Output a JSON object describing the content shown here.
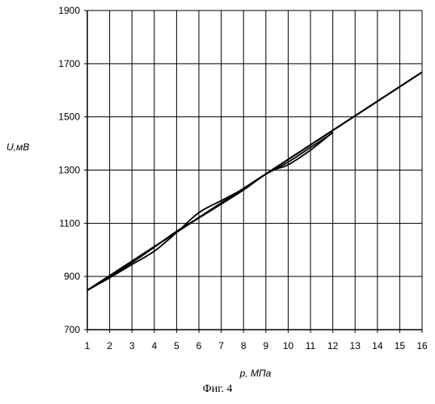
{
  "chart_data": {
    "type": "line",
    "xlabel": "p, МПа",
    "ylabel": "U,мВ",
    "caption": "Фиг. 4",
    "xlim": [
      1,
      16
    ],
    "ylim": [
      700,
      1900
    ],
    "x_ticks": [
      1,
      2,
      3,
      4,
      5,
      6,
      7,
      8,
      9,
      10,
      11,
      12,
      13,
      14,
      15,
      16
    ],
    "y_ticks": [
      700,
      900,
      1100,
      1300,
      1500,
      1700,
      1900
    ],
    "grid": true,
    "series": [
      {
        "values": [
          {
            "x": 1,
            "y": 848
          },
          {
            "x": 16,
            "y": 1668
          }
        ]
      },
      {
        "values": [
          {
            "x": 1,
            "y": 848
          },
          {
            "x": 2,
            "y": 895
          },
          {
            "x": 3,
            "y": 945
          },
          {
            "x": 4,
            "y": 995
          },
          {
            "x": 5,
            "y": 1065
          },
          {
            "x": 6,
            "y": 1140
          },
          {
            "x": 7,
            "y": 1185
          },
          {
            "x": 8,
            "y": 1230
          },
          {
            "x": 9,
            "y": 1285
          },
          {
            "x": 9.5,
            "y": 1305
          },
          {
            "x": 10,
            "y": 1320
          },
          {
            "x": 11,
            "y": 1375
          },
          {
            "x": 12,
            "y": 1442
          }
        ]
      },
      {
        "values": [
          {
            "x": 1,
            "y": 848
          },
          {
            "x": 2,
            "y": 898
          },
          {
            "x": 3,
            "y": 952
          },
          {
            "x": 4,
            "y": 1010
          },
          {
            "x": 5,
            "y": 1070
          },
          {
            "x": 6,
            "y": 1120
          },
          {
            "x": 7,
            "y": 1172
          },
          {
            "x": 8,
            "y": 1225
          },
          {
            "x": 9,
            "y": 1285
          },
          {
            "x": 10,
            "y": 1330
          },
          {
            "x": 11,
            "y": 1385
          },
          {
            "x": 12,
            "y": 1440
          }
        ]
      }
    ]
  }
}
